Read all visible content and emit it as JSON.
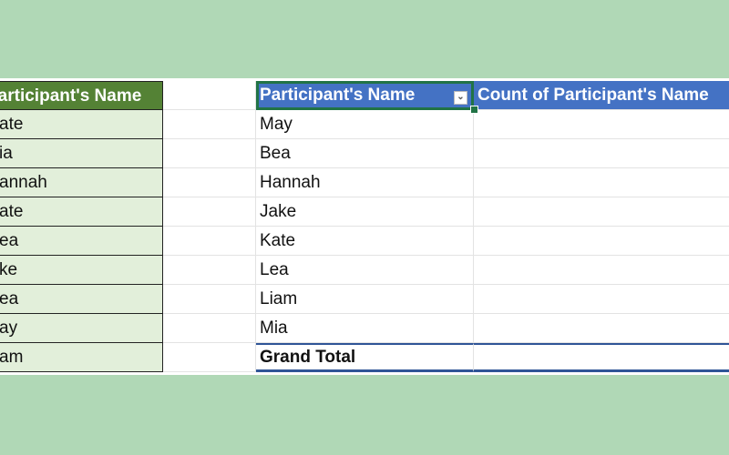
{
  "source_table": {
    "header": "Participant's Name",
    "rows": [
      "ate",
      "ia",
      "annah",
      "ate",
      "ea",
      "ke",
      "ea",
      "ay",
      "am"
    ]
  },
  "pivot_table": {
    "row_header": "Participant's Name",
    "value_header": "Count of Participant's Name",
    "filter_icon": "chevron-down-icon",
    "rows": [
      "May",
      "Bea",
      "Hannah",
      "Jake",
      "Kate",
      "Lea",
      "Liam",
      "Mia"
    ],
    "grand_total_label": "Grand Total"
  },
  "colors": {
    "background": "#b0d8b6",
    "source_header": "#548235",
    "source_cell": "#e2efda",
    "pivot_header": "#4472c4",
    "selection": "#217346"
  }
}
